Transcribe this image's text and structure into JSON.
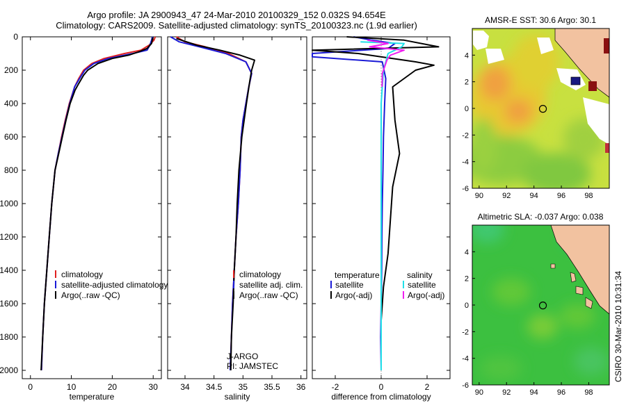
{
  "header": {
    "title_line1": "Argo profile: JA 2900943_47 24-Mar-2010 20100329_152 0.032S 94.654E",
    "title_line2": "Climatology: CARS2009. Satellite-adjusted climatology: synTS_20100323.nc (1.9d earlier)"
  },
  "side_label": "CSIRO 30-Mar-2010 10:31:34",
  "colors": {
    "climatology": "#e02020",
    "satellite": "#1a1ad6",
    "argo": "#000000",
    "argo_salinity_diff": "#f020f0",
    "satellite_salinity_diff": "#20e0e8",
    "land": "#f2c2a0",
    "sst_warm": "#e8c020",
    "sla_green": "#30c040"
  },
  "chart_data": [
    {
      "id": "temperature",
      "type": "line",
      "xlabel": "temperature",
      "ylabel": "",
      "xlim": [
        -2,
        32
      ],
      "ylim": [
        2050,
        0
      ],
      "y_reversed": true,
      "xticks": [
        0,
        10,
        20,
        30
      ],
      "yticks": [
        0,
        200,
        400,
        600,
        800,
        1000,
        1200,
        1400,
        1600,
        1800,
        2000
      ],
      "legend": {
        "placement": "lower-center",
        "entries": [
          "climatology",
          "satellite-adjusted climatology",
          "Argo(..raw -QC)"
        ]
      },
      "series": [
        {
          "name": "climatology",
          "color_key": "climatology",
          "x": [
            30.5,
            30.2,
            29.0,
            27.0,
            23.0,
            18.0,
            15.0,
            13.0,
            11.8,
            10.8,
            9.5,
            8.5,
            7.6,
            6.8,
            6.0,
            5.2,
            4.6,
            4.0,
            3.4,
            3.0,
            2.7
          ],
          "y": [
            0,
            20,
            50,
            80,
            100,
            130,
            160,
            200,
            250,
            300,
            400,
            500,
            600,
            700,
            800,
            1000,
            1200,
            1400,
            1600,
            1800,
            2000
          ]
        },
        {
          "name": "satellite-adjusted climatology",
          "color_key": "satellite",
          "x": [
            29.8,
            29.6,
            29.2,
            28.5,
            25.0,
            19.0,
            15.5,
            13.3,
            12.0,
            10.8,
            9.6,
            8.6,
            7.7,
            6.8,
            6.0,
            5.2,
            4.6,
            4.0,
            3.4,
            3.0,
            2.7
          ],
          "y": [
            0,
            20,
            50,
            80,
            100,
            130,
            160,
            200,
            250,
            300,
            400,
            500,
            600,
            700,
            800,
            1000,
            1200,
            1400,
            1600,
            1800,
            2000
          ]
        },
        {
          "name": "Argo(..raw -QC)",
          "color_key": "argo",
          "x": [
            29.9,
            29.6,
            28.5,
            26.5,
            24.0,
            20.0,
            16.5,
            14.0,
            13.0,
            11.8,
            10.9,
            9.7,
            8.7,
            7.8,
            6.9,
            6.0,
            5.2,
            4.6,
            4.0,
            3.4,
            3.0,
            2.6
          ],
          "y": [
            5,
            40,
            70,
            90,
            110,
            130,
            160,
            200,
            230,
            280,
            320,
            400,
            500,
            600,
            700,
            800,
            1000,
            1200,
            1400,
            1600,
            1800,
            2000
          ]
        }
      ]
    },
    {
      "id": "salinity",
      "type": "line",
      "xlabel": "salinity",
      "xlim": [
        33.7,
        36.1
      ],
      "ylim": [
        2050,
        0
      ],
      "y_reversed": true,
      "xticks": [
        34,
        34.5,
        35,
        35.5,
        36
      ],
      "legend": {
        "placement": "lower-right",
        "entries": [
          "climatology",
          "satellite adj. clim.",
          "Argo(..raw -QC)"
        ]
      },
      "annotations": [
        "J-ARGO",
        "PI: JAMSTEC"
      ],
      "series": [
        {
          "name": "climatology",
          "color_key": "climatology",
          "x": [
            33.85,
            34.0,
            34.35,
            34.75,
            35.05,
            35.15,
            35.1,
            35.05,
            35.0,
            34.97,
            34.95,
            34.92,
            34.88,
            34.85,
            34.82,
            34.8,
            34.78
          ],
          "y": [
            0,
            30,
            60,
            100,
            150,
            220,
            300,
            400,
            500,
            600,
            800,
            1000,
            1200,
            1400,
            1600,
            1800,
            2000
          ]
        },
        {
          "name": "satellite adj. clim.",
          "color_key": "satellite",
          "x": [
            33.75,
            33.9,
            34.25,
            34.7,
            35.05,
            35.15,
            35.1,
            35.05,
            35.0,
            34.97,
            34.95,
            34.92,
            34.88,
            34.85,
            34.82,
            34.8,
            34.78
          ],
          "y": [
            0,
            30,
            60,
            100,
            150,
            220,
            300,
            400,
            500,
            600,
            800,
            1000,
            1200,
            1400,
            1600,
            1800,
            2000
          ]
        },
        {
          "name": "Argo(..raw -QC)",
          "color_key": "argo",
          "x": [
            33.85,
            34.2,
            34.6,
            34.95,
            35.2,
            35.15,
            35.12,
            35.06,
            35.02,
            34.98,
            34.93,
            34.9,
            34.88,
            34.85,
            34.83,
            34.8,
            34.79
          ],
          "y": [
            10,
            50,
            80,
            110,
            140,
            200,
            260,
            400,
            500,
            600,
            800,
            1000,
            1200,
            1400,
            1600,
            1800,
            2000
          ]
        }
      ]
    },
    {
      "id": "difference",
      "type": "line",
      "xlabel": "difference from climatology",
      "xlim": [
        -3,
        3
      ],
      "ylim": [
        2050,
        0
      ],
      "y_reversed": true,
      "xticks": [
        -2,
        0,
        2
      ],
      "legend": {
        "placement": "lower-center",
        "groups": [
          {
            "heading": "temperature",
            "entries": [
              "satellite",
              "Argo(-adj)"
            ]
          },
          {
            "heading": "salinity",
            "entries": [
              "satellite",
              "Argo(-adj)"
            ]
          }
        ]
      },
      "series": [
        {
          "name": "satellite",
          "group": "temperature",
          "color_key": "satellite",
          "x": [
            -1.2,
            -0.4,
            0.6,
            0.3,
            -3.0,
            -3.0,
            0.05,
            0.2,
            0.15,
            0.1,
            0.08,
            0.05,
            0.03,
            0.02,
            0.0,
            -0.02,
            0.0
          ],
          "y": [
            0,
            20,
            40,
            70,
            100,
            120,
            150,
            250,
            400,
            600,
            800,
            1000,
            1200,
            1400,
            1600,
            1800,
            2000
          ]
        },
        {
          "name": "Argo(-adj)",
          "group": "temperature",
          "color_key": "argo",
          "x": [
            -1.5,
            1.0,
            2.5,
            -3.0,
            -1.0,
            1.5,
            2.3,
            1.5,
            0.5,
            0.6,
            0.8,
            0.5,
            0.4,
            0.3,
            0.1,
            0.0,
            0.0
          ],
          "y": [
            0,
            20,
            60,
            80,
            100,
            150,
            170,
            200,
            300,
            500,
            700,
            900,
            1100,
            1300,
            1500,
            1700,
            2000
          ]
        },
        {
          "name": "satellite",
          "group": "salinity",
          "color_key": "satellite_salinity_diff",
          "x": [
            -0.9,
            1.0,
            0.9,
            0.3,
            0.1,
            0.0,
            0.0,
            0.0,
            0.0,
            0.0,
            0.0,
            0.0,
            0.0,
            0.0
          ],
          "y": [
            30,
            40,
            60,
            100,
            200,
            400,
            600,
            800,
            1000,
            1200,
            1400,
            1600,
            1800,
            2000
          ]
        },
        {
          "name": "Argo(-adj)",
          "group": "salinity",
          "color_key": "argo_salinity_diff",
          "x": [
            -0.6,
            0.3,
            -0.5,
            1.0,
            0.4,
            0.25,
            0.15,
            0.05,
            0.05,
            0.04
          ],
          "y": [
            20,
            40,
            60,
            80,
            110,
            140,
            180,
            220,
            260,
            300
          ]
        }
      ]
    },
    {
      "id": "sst-map",
      "type": "heatmap",
      "title": "AMSR-E SST: 30.6 Argo: 30.1",
      "xlim": [
        89.5,
        99.5
      ],
      "ylim": [
        -6,
        6
      ],
      "xticks": [
        90,
        92,
        94,
        96,
        98
      ],
      "yticks": [
        -6,
        -4,
        -2,
        0,
        2,
        4
      ],
      "argo_position": {
        "lon": 94.654,
        "lat": -0.032
      }
    },
    {
      "id": "sla-map",
      "type": "heatmap",
      "title": "Altimetric SLA: -0.037 Argo: 0.038",
      "xlim": [
        89.5,
        99.5
      ],
      "ylim": [
        -6,
        6
      ],
      "xticks": [
        90,
        92,
        94,
        96,
        98
      ],
      "yticks": [
        -6,
        -4,
        -2,
        0,
        2,
        4
      ],
      "argo_position": {
        "lon": 94.654,
        "lat": -0.032
      }
    }
  ]
}
